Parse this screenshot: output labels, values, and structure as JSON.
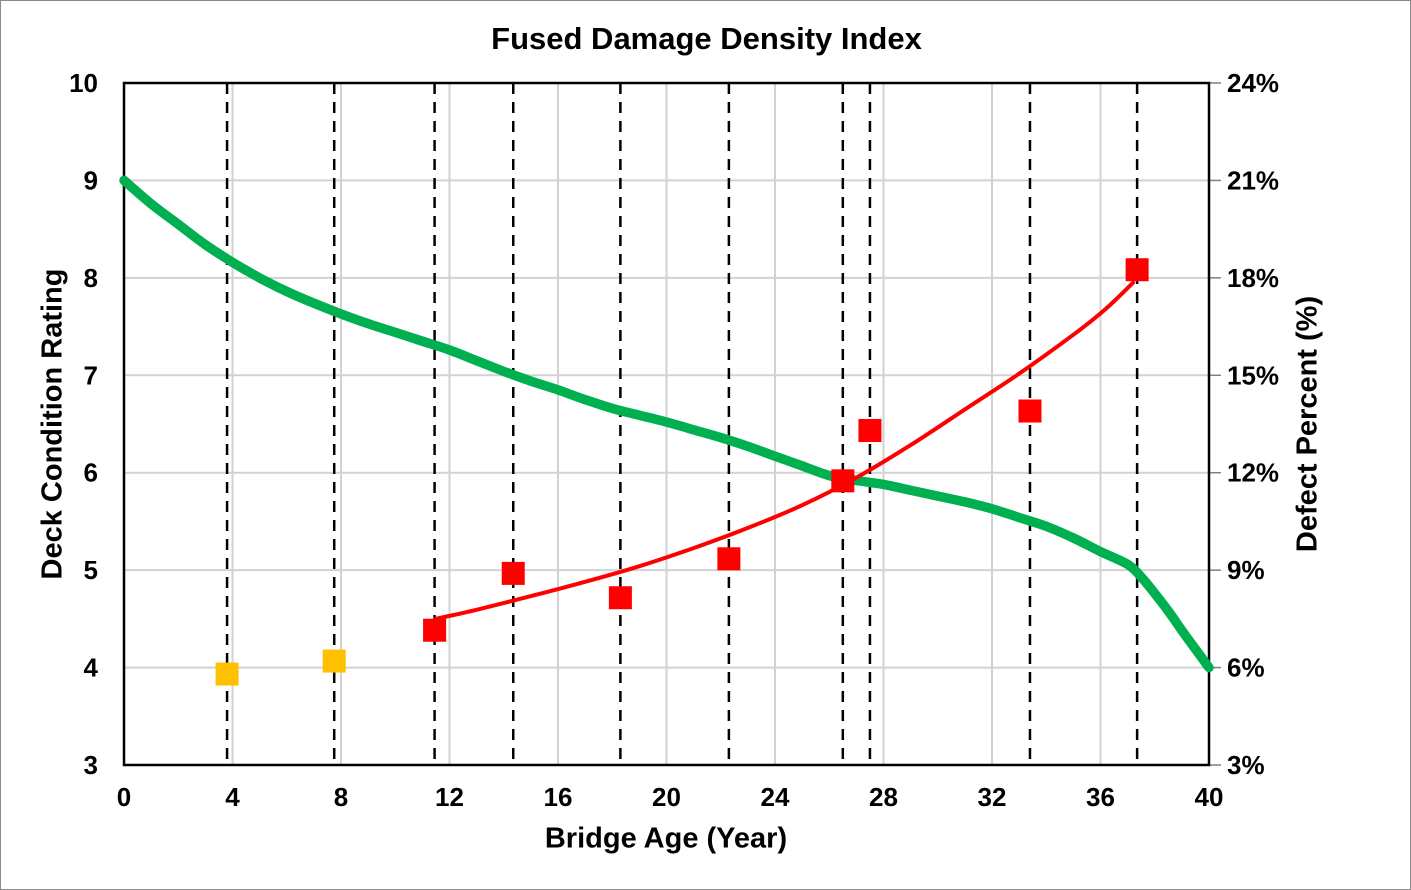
{
  "title": "Fused Damage Density Index",
  "axes": {
    "x": {
      "label": "Bridge Age (Year)",
      "min": 0,
      "max": 40,
      "step": 4,
      "tick_values": [
        0,
        4,
        8,
        12,
        16,
        20,
        24,
        28,
        32,
        36,
        40
      ],
      "tick_labels": [
        "0",
        "4",
        "8",
        "12",
        "16",
        "20",
        "24",
        "28",
        "32",
        "36",
        "40"
      ]
    },
    "y_left": {
      "label": "Deck Condition Rating",
      "min": 3,
      "max": 10,
      "step": 1,
      "tick_values": [
        10,
        9,
        8,
        7,
        6,
        5,
        4,
        3
      ],
      "tick_labels": [
        "10",
        "9",
        "8",
        "7",
        "6",
        "5",
        "4",
        "3"
      ]
    },
    "y_right": {
      "label": "Defect Percent (%)",
      "min": 3,
      "max": 24,
      "step": 3,
      "tick_values": [
        24,
        21,
        18,
        15,
        12,
        9,
        6,
        3
      ],
      "tick_labels": [
        "24%",
        "21%",
        "18%",
        "15%",
        "12%",
        "9%",
        "6%",
        "3%"
      ]
    }
  },
  "chart_data": {
    "type": "line+scatter",
    "title": "Fused Damage Density Index",
    "xlabel": "Bridge Age (Year)",
    "ylabel_left": "Deck Condition Rating",
    "ylabel_right": "Defect Percent (%)",
    "xlim": [
      0,
      40
    ],
    "ylim_left": [
      3,
      10
    ],
    "ylim_right": [
      3,
      24
    ],
    "grid": true,
    "legend": "none",
    "series": [
      {
        "name": "deck-condition-curve",
        "type": "line",
        "axis": "left",
        "color": "#00B050",
        "width": 9.5,
        "points": [
          [
            0,
            9.0
          ],
          [
            1,
            8.76
          ],
          [
            2,
            8.55
          ],
          [
            3,
            8.34
          ],
          [
            4,
            8.16
          ],
          [
            5,
            8.0
          ],
          [
            6,
            7.86
          ],
          [
            7,
            7.74
          ],
          [
            8,
            7.63
          ],
          [
            9,
            7.53
          ],
          [
            10,
            7.44
          ],
          [
            11,
            7.35
          ],
          [
            12,
            7.26
          ],
          [
            13,
            7.15
          ],
          [
            14,
            7.04
          ],
          [
            15,
            6.94
          ],
          [
            16,
            6.85
          ],
          [
            17,
            6.75
          ],
          [
            18,
            6.66
          ],
          [
            19,
            6.59
          ],
          [
            20,
            6.52
          ],
          [
            21,
            6.44
          ],
          [
            22,
            6.36
          ],
          [
            23,
            6.27
          ],
          [
            24,
            6.17
          ],
          [
            25,
            6.07
          ],
          [
            26,
            5.97
          ],
          [
            27,
            5.92
          ],
          [
            28,
            5.88
          ],
          [
            29,
            5.82
          ],
          [
            30,
            5.76
          ],
          [
            31,
            5.7
          ],
          [
            32,
            5.63
          ],
          [
            33,
            5.54
          ],
          [
            34,
            5.45
          ],
          [
            35,
            5.33
          ],
          [
            36,
            5.19
          ],
          [
            37,
            5.06
          ],
          [
            37.5,
            4.93
          ],
          [
            38,
            4.76
          ],
          [
            38.5,
            4.58
          ],
          [
            39,
            4.38
          ],
          [
            39.5,
            4.19
          ],
          [
            40,
            4.0
          ]
        ]
      },
      {
        "name": "defect-trend-line",
        "type": "line",
        "axis": "right",
        "color": "#FF0000",
        "width": 4,
        "points": [
          [
            11.5,
            7.5
          ],
          [
            13,
            7.78
          ],
          [
            15,
            8.2
          ],
          [
            17,
            8.64
          ],
          [
            19,
            9.12
          ],
          [
            21,
            9.68
          ],
          [
            23,
            10.3
          ],
          [
            25,
            11.0
          ],
          [
            27,
            11.85
          ],
          [
            29,
            12.85
          ],
          [
            31,
            13.95
          ],
          [
            33,
            15.05
          ],
          [
            35,
            16.25
          ],
          [
            36.2,
            17.05
          ],
          [
            37.2,
            17.85
          ]
        ]
      },
      {
        "name": "defect-points-red",
        "type": "scatter",
        "axis": "right",
        "color": "#FF0000",
        "marker": "square",
        "size": 23,
        "points": [
          [
            11.45,
            7.15
          ],
          [
            14.35,
            8.9
          ],
          [
            18.3,
            8.15
          ],
          [
            22.3,
            9.35
          ],
          [
            26.5,
            11.75
          ],
          [
            27.5,
            13.3
          ],
          [
            33.4,
            13.9
          ],
          [
            37.35,
            18.25
          ]
        ]
      },
      {
        "name": "defect-points-gold",
        "type": "scatter",
        "axis": "right",
        "color": "#FFC000",
        "marker": "square",
        "size": 23,
        "points": [
          [
            3.8,
            5.8
          ],
          [
            7.75,
            6.2
          ]
        ]
      }
    ],
    "guide_lines": {
      "style": "dashed",
      "color": "#000000",
      "x_values": [
        3.8,
        7.75,
        11.45,
        14.35,
        18.3,
        22.3,
        26.5,
        27.5,
        33.4,
        37.35
      ]
    }
  },
  "colors": {
    "green_curve": "#00B050",
    "red_series": "#FF0000",
    "gold_points": "#FFC000",
    "gridline": "#D2D2D2",
    "guide_line": "#000000",
    "plot_border": "#000000",
    "right_tick": "#7F7F7F",
    "text": "#000000"
  }
}
